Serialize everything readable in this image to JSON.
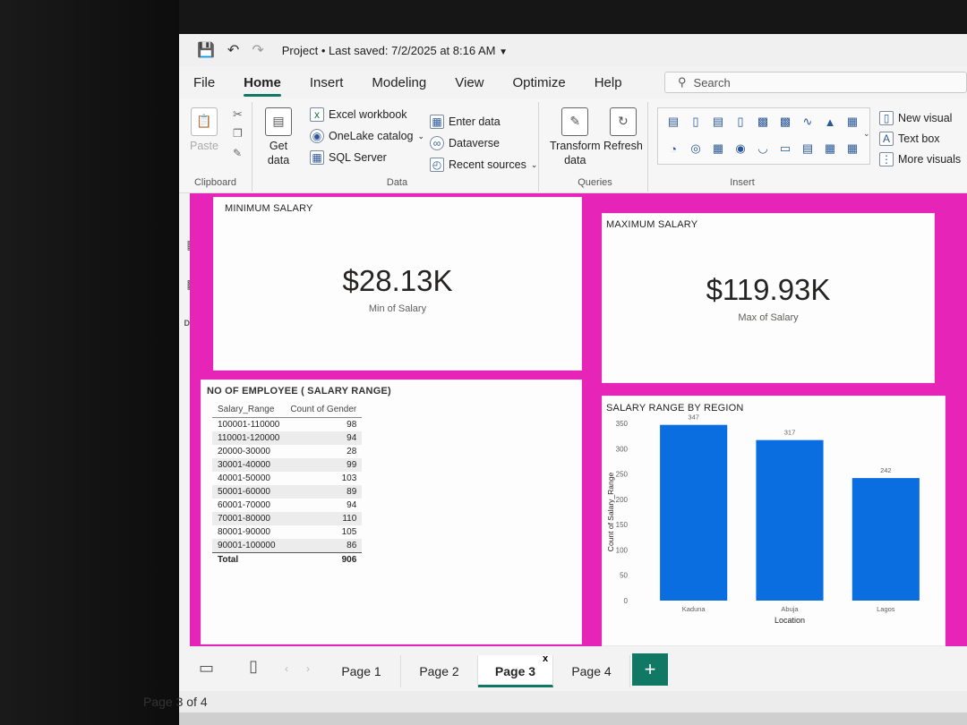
{
  "titlebar": {
    "title": "Project",
    "sep": "•",
    "saved": "Last saved: 7/2/2025 at 8:16 AM"
  },
  "menu": {
    "tabs": [
      "File",
      "Home",
      "Insert",
      "Modeling",
      "View",
      "Optimize",
      "Help"
    ],
    "active": "Home"
  },
  "search": {
    "placeholder": "Search"
  },
  "ribbon": {
    "clipboard": {
      "label": "Clipboard",
      "paste": "Paste"
    },
    "data": {
      "label": "Data",
      "get_data": "Get",
      "get_data2": "data",
      "excel": "Excel workbook",
      "onelake": "OneLake catalog",
      "sql": "SQL Server",
      "enter": "Enter data",
      "dataverse": "Dataverse",
      "recent": "Recent sources"
    },
    "queries": {
      "label": "Queries",
      "transform": "Transform",
      "transform2": "data",
      "refresh": "Refresh"
    },
    "insert": {
      "label": "Insert",
      "new_visual": "New visual",
      "text_box": "Text box",
      "more_visuals": "More visuals"
    }
  },
  "cards": {
    "min": {
      "title": "MINIMUM SALARY",
      "value": "$28.13K",
      "label": "Min of Salary"
    },
    "max": {
      "title": "MAXIMUM SALARY",
      "value": "$119.93K",
      "label": "Max of Salary"
    }
  },
  "table": {
    "title": "NO OF EMPLOYEE ( SALARY RANGE)",
    "headers": [
      "Salary_Range",
      "Count of Gender"
    ],
    "rows": [
      [
        "100001-110000",
        "98"
      ],
      [
        "110001-120000",
        "94"
      ],
      [
        "20000-30000",
        "28"
      ],
      [
        "30001-40000",
        "99"
      ],
      [
        "40001-50000",
        "103"
      ],
      [
        "50001-60000",
        "89"
      ],
      [
        "60001-70000",
        "94"
      ],
      [
        "70001-80000",
        "110"
      ],
      [
        "80001-90000",
        "105"
      ],
      [
        "90001-100000",
        "86"
      ]
    ],
    "total": [
      "Total",
      "906"
    ]
  },
  "chart_data": {
    "type": "bar",
    "title": "SALARY RANGE BY REGION",
    "categories": [
      "Kaduna",
      "Abuja",
      "Lagos"
    ],
    "values": [
      347,
      317,
      242
    ],
    "xlabel": "Location",
    "ylabel": "Count of Salary_Range",
    "ylim": [
      0,
      350
    ],
    "yticks": [
      0,
      50,
      100,
      150,
      200,
      250,
      300,
      350
    ],
    "color": "#0a6ee0",
    "grid": false
  },
  "pages": {
    "tabs": [
      "Page 1",
      "Page 2",
      "Page 3",
      "Page 4"
    ],
    "active": "Page 3",
    "close": "x",
    "add": "+"
  },
  "status": {
    "text": "Page 3 of 4"
  },
  "colors": {
    "canvas_bg": "#e624b8",
    "accent": "#117865"
  }
}
